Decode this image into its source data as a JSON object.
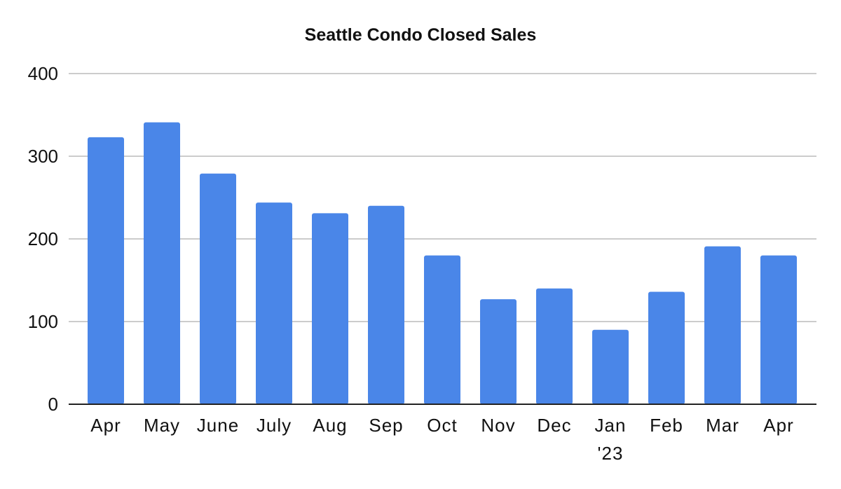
{
  "chart_data": {
    "type": "bar",
    "title": "Seattle Condo Closed Sales",
    "categories": [
      "Apr",
      "May",
      "June",
      "July",
      "Aug",
      "Sep",
      "Oct",
      "Nov",
      "Dec",
      "Jan",
      "Feb",
      "Mar",
      "Apr"
    ],
    "category_sublabels": [
      "",
      "",
      "",
      "",
      "",
      "",
      "",
      "",
      "",
      "'23",
      "",
      "",
      ""
    ],
    "values": [
      323,
      341,
      279,
      244,
      231,
      240,
      180,
      127,
      140,
      90,
      136,
      191,
      180
    ],
    "ylim": [
      0,
      400
    ],
    "yticks": [
      0,
      100,
      200,
      300,
      400
    ],
    "grid": true,
    "legend": "none",
    "bar_color": "#4A86E8",
    "grid_color": "#cccccc",
    "axis_color": "#222222"
  }
}
